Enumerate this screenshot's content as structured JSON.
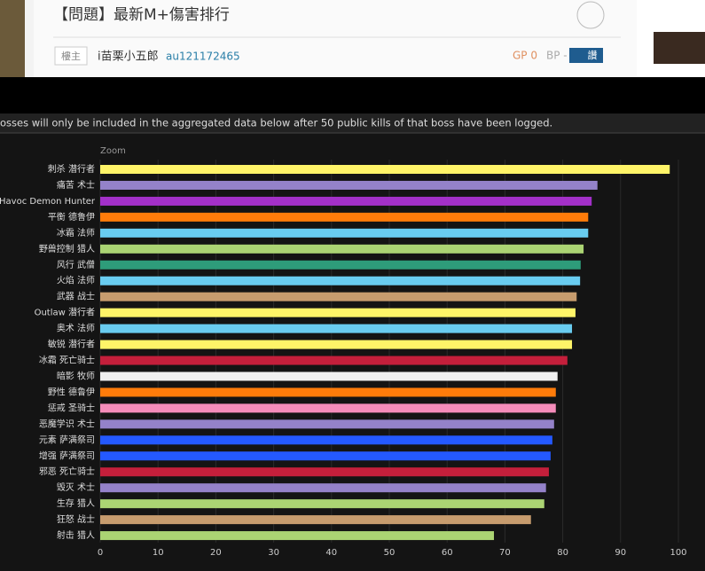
{
  "header": {
    "title": "【問題】最新M+傷害排行",
    "badge": "樓主",
    "author": "i苗栗小五郎",
    "account": "au121172465",
    "gp": "GP 0",
    "bp": "BP -",
    "like": "讚"
  },
  "notice": "osses will only be included in the aggregated data below after 50 public kills of that boss have been logged.",
  "zoom": "Zoom",
  "chart_data": {
    "type": "bar",
    "orientation": "horizontal",
    "categories": [
      "刺杀 潜行者",
      "痛苦 术士",
      "Havoc Demon Hunter",
      "平衡 德鲁伊",
      "冰霜 法师",
      "野兽控制 猎人",
      "风行 武僧",
      "火焰 法师",
      "武器 战士",
      "Outlaw 潜行者",
      "奥术 法师",
      "敏锐 潜行者",
      "冰霜 死亡骑士",
      "暗影 牧师",
      "野性 德鲁伊",
      "惩戒 圣骑士",
      "恶魔学识 术士",
      "元素 萨满祭司",
      "增强 萨满祭司",
      "邪恶 死亡骑士",
      "毁灭 术士",
      "生存 猎人",
      "狂怒 战士",
      "射击 猎人"
    ],
    "values": [
      98.5,
      86.0,
      85.0,
      84.4,
      84.4,
      83.6,
      83.1,
      83.0,
      82.4,
      82.2,
      81.6,
      81.6,
      80.8,
      79.1,
      78.8,
      78.8,
      78.5,
      78.2,
      77.9,
      77.6,
      77.1,
      76.8,
      74.5,
      68.1
    ],
    "colors": [
      "#fff468",
      "#9482c9",
      "#a330c9",
      "#ff7c0a",
      "#69ccf0",
      "#abd473",
      "#2e9c7a",
      "#69ccf0",
      "#c79c6e",
      "#fff468",
      "#69ccf0",
      "#fff468",
      "#c41f3b",
      "#f0f0f0",
      "#ff7c0a",
      "#f58cba",
      "#9482c9",
      "#2459ff",
      "#2459ff",
      "#c41f3b",
      "#9482c9",
      "#abd473",
      "#c79c6e",
      "#abd473"
    ],
    "xlim": [
      0,
      100
    ],
    "xticks": [
      0,
      10,
      20,
      30,
      40,
      50,
      60,
      70,
      80,
      90,
      100
    ],
    "grid": true
  }
}
